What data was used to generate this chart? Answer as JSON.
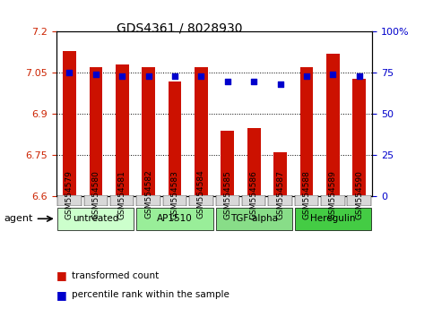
{
  "title": "GDS4361 / 8028930",
  "samples": [
    "GSM554579",
    "GSM554580",
    "GSM554581",
    "GSM554582",
    "GSM554583",
    "GSM554584",
    "GSM554585",
    "GSM554586",
    "GSM554587",
    "GSM554588",
    "GSM554589",
    "GSM554590"
  ],
  "bar_values": [
    7.13,
    7.07,
    7.08,
    7.07,
    7.02,
    7.07,
    6.84,
    6.85,
    6.76,
    7.07,
    7.12,
    7.03
  ],
  "percentile_values": [
    75,
    74,
    73,
    73,
    73,
    73,
    70,
    70,
    68,
    73,
    74,
    73
  ],
  "ylim": [
    6.6,
    7.2
  ],
  "yticks": [
    6.6,
    6.75,
    6.9,
    7.05,
    7.2
  ],
  "ytick_labels": [
    "6.6",
    "6.75",
    "6.9",
    "7.05",
    "7.2"
  ],
  "y2lim": [
    0,
    100
  ],
  "y2ticks": [
    0,
    25,
    50,
    75,
    100
  ],
  "y2tick_labels": [
    "0",
    "25",
    "50",
    "75",
    "100%"
  ],
  "bar_color": "#CC1100",
  "dot_color": "#0000CC",
  "yticklabel_color": "#CC2200",
  "y2ticklabel_color": "#0000CC",
  "grid_linestyle": "dotted",
  "grid_color": "#000000",
  "agents": [
    {
      "label": "untreated",
      "start": 0,
      "end": 3,
      "color": "#ccffcc"
    },
    {
      "label": "AP1510",
      "start": 3,
      "end": 6,
      "color": "#99ee99"
    },
    {
      "label": "TGF-alpha",
      "start": 6,
      "end": 9,
      "color": "#88dd88"
    },
    {
      "label": "Heregulin",
      "start": 9,
      "end": 12,
      "color": "#44cc44"
    }
  ],
  "legend_bar_label": "transformed count",
  "legend_dot_label": "percentile rank within the sample",
  "agent_label": "agent",
  "background_color": "#f0f0f0",
  "bar_width": 0.5
}
